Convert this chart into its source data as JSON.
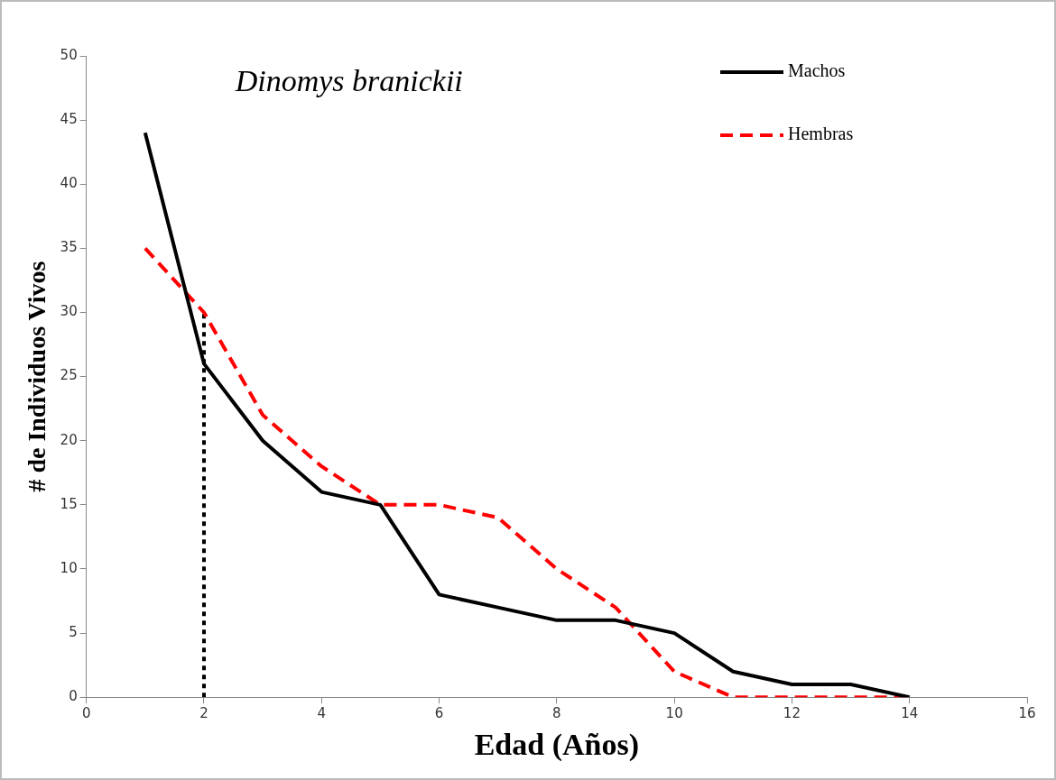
{
  "chart_data": {
    "type": "line",
    "title": "Dinomys branickii",
    "xlabel": "Edad (Años)",
    "ylabel": "# de Individuos Vivos",
    "x": [
      1,
      2,
      3,
      4,
      5,
      6,
      7,
      8,
      9,
      10,
      11,
      12,
      13,
      14
    ],
    "series": [
      {
        "name": "Machos",
        "color": "#000000",
        "line_style": "solid",
        "values": [
          44,
          26,
          20,
          16,
          15,
          8,
          7,
          6,
          6,
          5,
          2,
          1,
          1,
          0
        ]
      },
      {
        "name": "Hembras",
        "color": "#ff0000",
        "line_style": "dashed",
        "values": [
          35,
          30,
          22,
          18,
          15,
          15,
          14,
          10,
          7,
          2,
          0,
          0,
          0,
          0
        ]
      },
      {
        "color": "#000000",
        "line_style": "dotted",
        "x": [
          2,
          2
        ],
        "values": [
          0,
          30
        ]
      }
    ],
    "xlim": [
      0,
      16
    ],
    "xticks": [
      0,
      2,
      4,
      6,
      8,
      10,
      12,
      14,
      16
    ],
    "ylim": [
      0,
      50
    ],
    "yticks": [
      0,
      5,
      10,
      15,
      20,
      25,
      30,
      35,
      40,
      45,
      50
    ],
    "grid": false,
    "legend": "top right",
    "marker": "none"
  }
}
